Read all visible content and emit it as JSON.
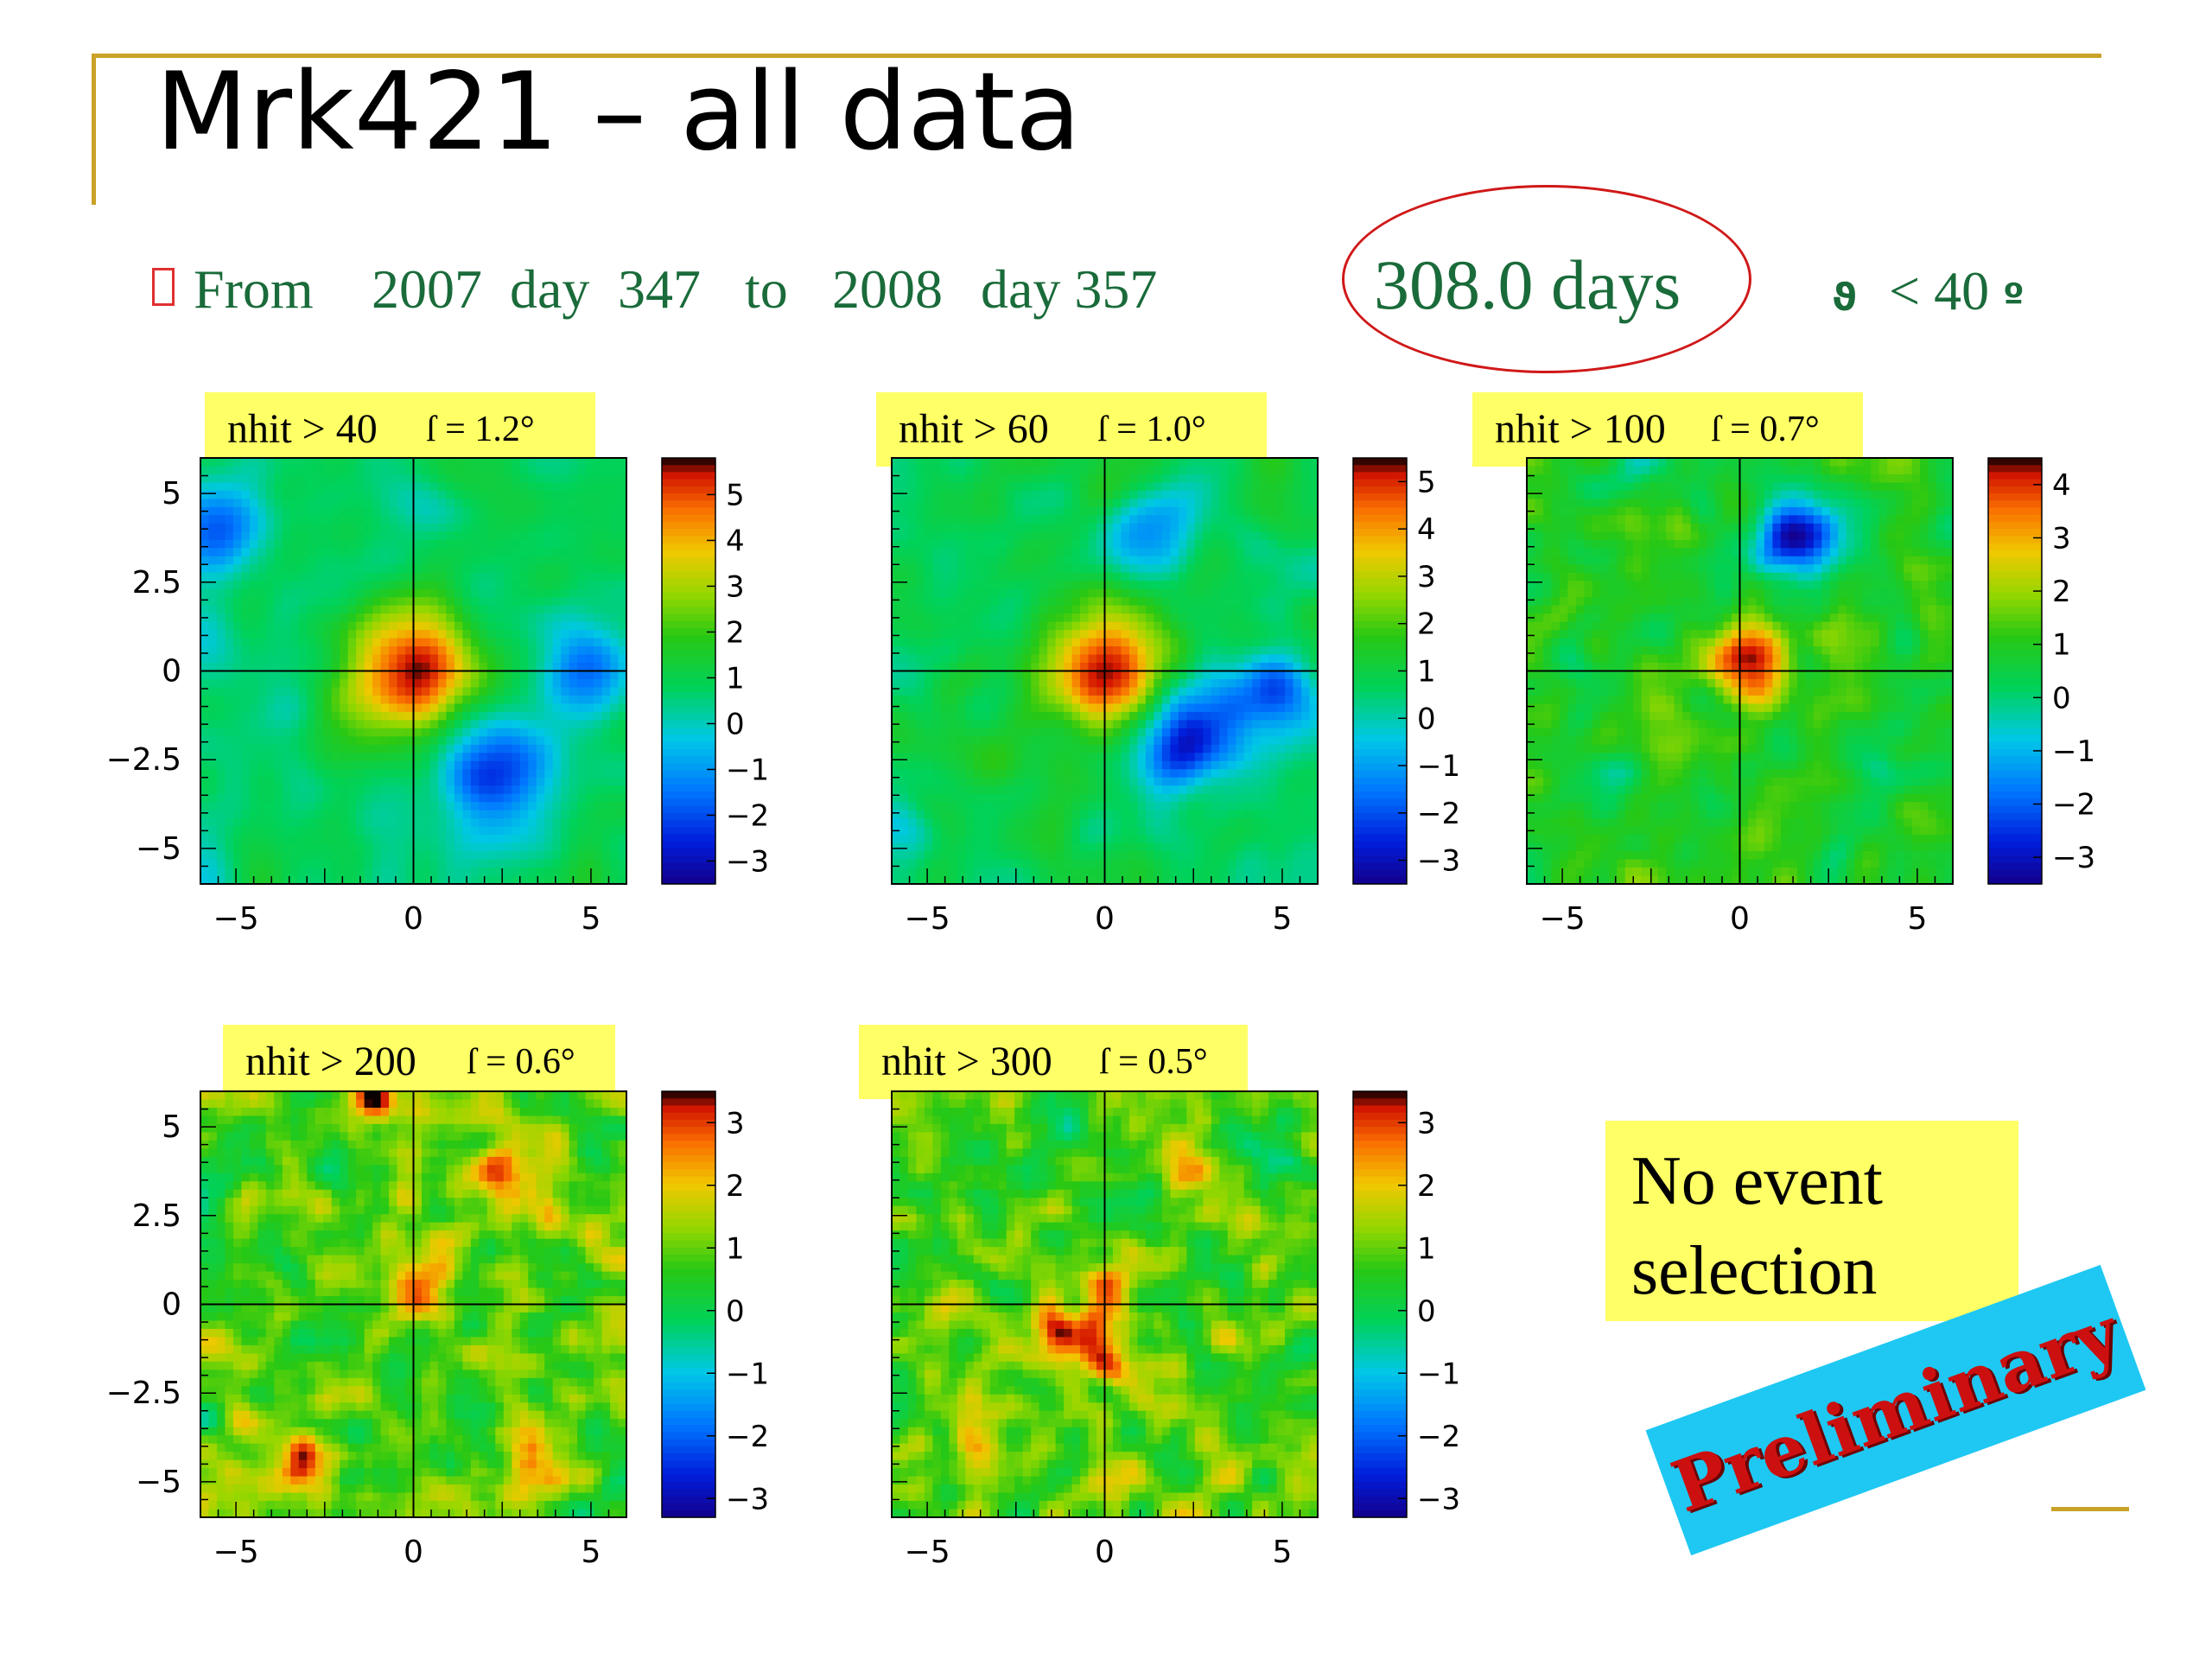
{
  "slide": {
    "title": "Mrk421 – all data",
    "subtitle": {
      "from": "From",
      "start_year": "2007",
      "start_day_label": "day",
      "start_day": "347",
      "to": "to",
      "end_year": "2008",
      "end_day_label": "day 357"
    },
    "days": "308.0  days",
    "condition": {
      "icon_glyph": "ϑ",
      "text": "< 40",
      "icon2_glyph": "º"
    },
    "note": [
      "No event",
      "selection"
    ],
    "stamp": "Preliminary",
    "colors": {
      "accent_gold": "#c9a227",
      "text_green": "#1a6b3a",
      "label_yellow": "#ffff66",
      "stamp_bg": "#1ec8f2",
      "stamp_text": "#cc1010",
      "ellipse": "#d01818"
    }
  },
  "chart_data": [
    {
      "type": "heatmap",
      "label_cut": "nhit > 40",
      "label_sigma": "ſ = 1.2°",
      "xlim": [
        -6,
        6
      ],
      "ylim": [
        -6,
        6
      ],
      "x_ticks": [
        "−5",
        "0",
        "5"
      ],
      "y_ticks": [
        "5",
        "2.5",
        "0",
        "−2.5",
        "−5"
      ],
      "colorbar_range": [
        -3.5,
        5.8
      ],
      "colorbar_ticks": [
        "5",
        "4",
        "3",
        "2",
        "1",
        "0",
        "−1",
        "−2",
        "−3"
      ],
      "hotspots": [
        [
          0,
          0,
          5.6,
          1.3
        ],
        [
          2.2,
          -2.8,
          -2.6,
          1.1
        ],
        [
          5,
          0,
          -1.6,
          0.9
        ],
        [
          -5.5,
          4,
          -1.6,
          1.0
        ]
      ]
    },
    {
      "type": "heatmap",
      "label_cut": "nhit > 60",
      "label_sigma": "ſ = 1.0°",
      "xlim": [
        -6,
        6
      ],
      "ylim": [
        -6,
        6
      ],
      "x_ticks": [
        "−5",
        "0",
        "5"
      ],
      "y_ticks": [],
      "colorbar_range": [
        -3.5,
        5.5
      ],
      "colorbar_ticks": [
        "5",
        "4",
        "3",
        "2",
        "1",
        "0",
        "−1",
        "−2",
        "−3"
      ],
      "hotspots": [
        [
          0,
          0,
          5.5,
          1.1
        ],
        [
          2.5,
          -2,
          -2.7,
          1.0
        ],
        [
          4.8,
          -0.5,
          -2.2,
          0.8
        ],
        [
          1.5,
          4,
          -1.6,
          0.8
        ]
      ]
    },
    {
      "type": "heatmap",
      "label_cut": "nhit > 100",
      "label_sigma": "ſ = 0.7°",
      "xlim": [
        -6,
        6
      ],
      "ylim": [
        -6,
        6
      ],
      "x_ticks": [
        "−5",
        "0",
        "5"
      ],
      "y_ticks": [],
      "colorbar_range": [
        -3.5,
        4.5
      ],
      "colorbar_ticks": [
        "4",
        "3",
        "2",
        "1",
        "0",
        "−1",
        "−2",
        "−3"
      ],
      "hotspots": [
        [
          0.3,
          0.2,
          3.8,
          0.8
        ],
        [
          1.5,
          3.7,
          -2.8,
          0.8
        ],
        [
          -2,
          -1,
          1.6,
          0.9
        ],
        [
          3,
          1,
          1.5,
          0.9
        ]
      ]
    },
    {
      "type": "heatmap",
      "label_cut": "nhit > 200",
      "label_sigma": "ſ = 0.6°",
      "xlim": [
        -6,
        6
      ],
      "ylim": [
        -6,
        6
      ],
      "x_ticks": [
        "−5",
        "0",
        "5"
      ],
      "y_ticks": [
        "5",
        "2.5",
        "0",
        "−2.5",
        "−5"
      ],
      "colorbar_range": [
        -3.3,
        3.5
      ],
      "colorbar_ticks": [
        "3",
        "2",
        "1",
        "0",
        "−1",
        "−2",
        "−3"
      ],
      "hotspots": [
        [
          -3,
          -4.5,
          3.0,
          0.6
        ],
        [
          2.5,
          3.5,
          2.8,
          0.6
        ],
        [
          -1,
          5.7,
          3.2,
          0.5
        ],
        [
          0,
          0.5,
          2.5,
          0.6
        ],
        [
          3.5,
          -4.5,
          2.2,
          0.7
        ]
      ]
    },
    {
      "type": "heatmap",
      "label_cut": "nhit > 300",
      "label_sigma": "ſ = 0.5°",
      "xlim": [
        -6,
        6
      ],
      "ylim": [
        -6,
        6
      ],
      "x_ticks": [
        "−5",
        "0",
        "5"
      ],
      "y_ticks": [],
      "colorbar_range": [
        -3.3,
        3.5
      ],
      "colorbar_ticks": [
        "3",
        "2",
        "1",
        "0",
        "−1",
        "−2",
        "−3"
      ],
      "hotspots": [
        [
          0,
          0.3,
          3.2,
          0.5
        ],
        [
          -1.2,
          -0.8,
          3.0,
          0.6
        ],
        [
          0.2,
          -1.7,
          2.8,
          0.5
        ],
        [
          2.5,
          3.8,
          2.4,
          0.5
        ],
        [
          -3.5,
          -4,
          2.0,
          0.7
        ]
      ]
    }
  ]
}
